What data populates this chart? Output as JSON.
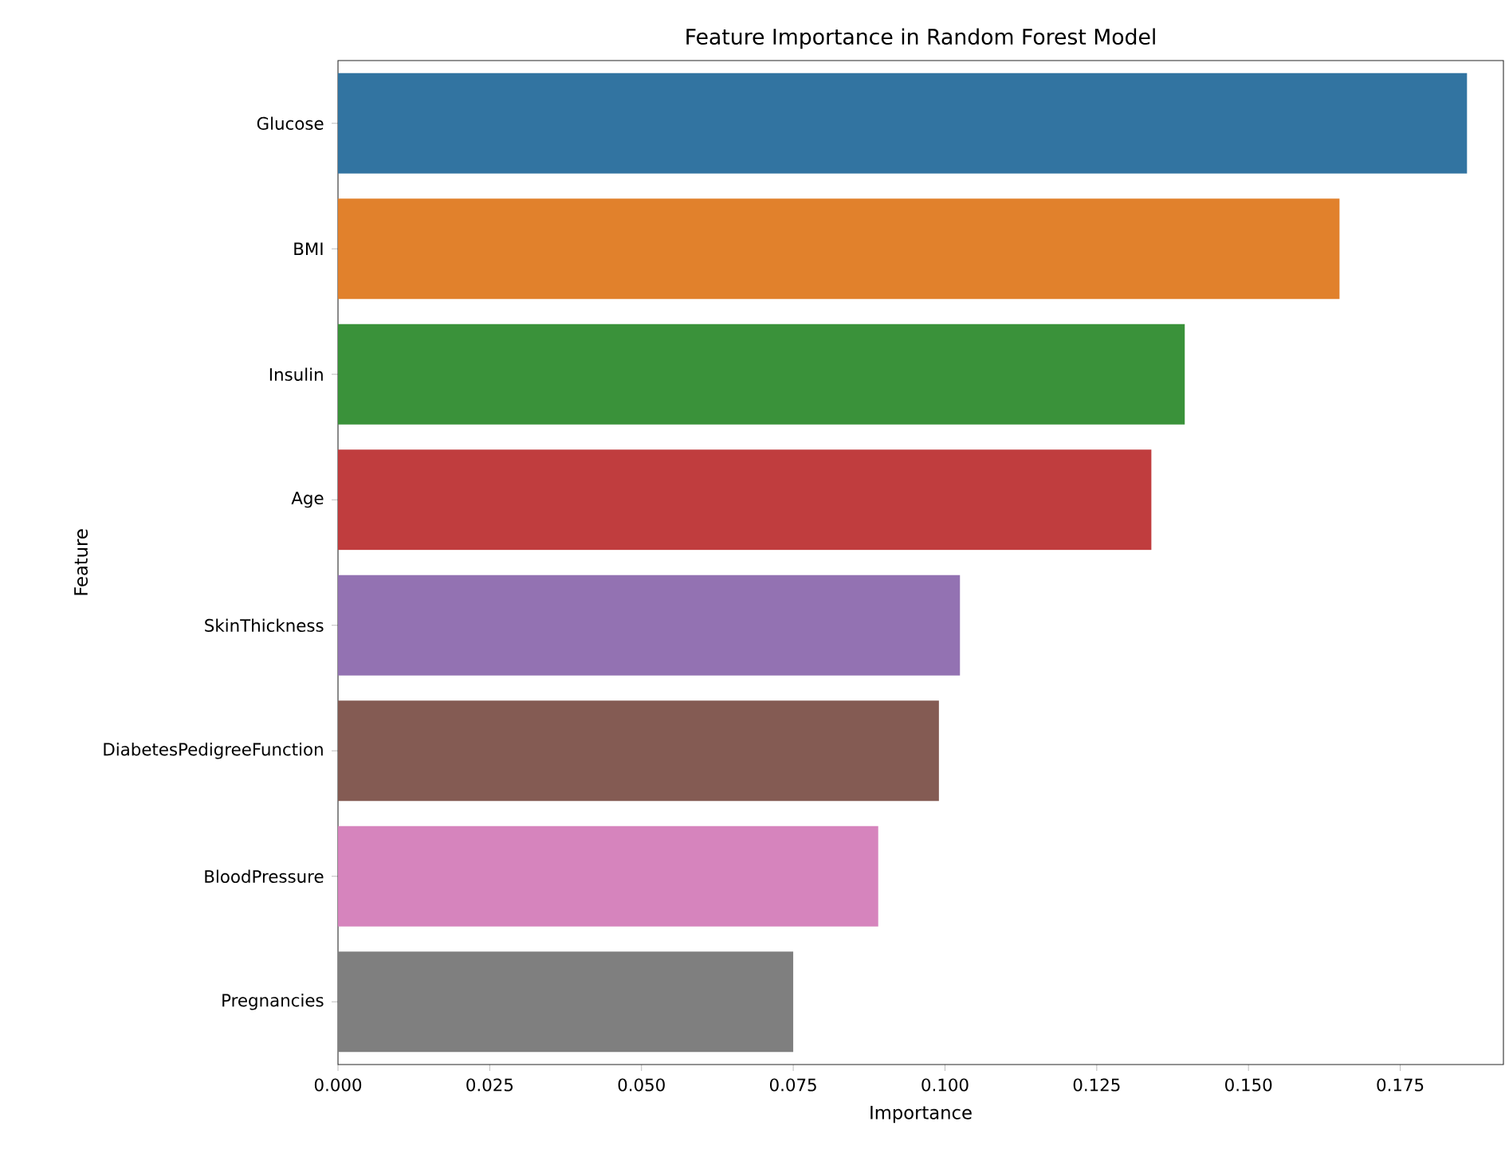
{
  "chart_data": {
    "type": "bar",
    "orientation": "horizontal",
    "title": "Feature Importance in Random Forest Model",
    "xlabel": "Importance",
    "ylabel": "Feature",
    "categories": [
      "Glucose",
      "BMI",
      "Insulin",
      "Age",
      "SkinThickness",
      "DiabetesPedigreeFunction",
      "BloodPressure",
      "Pregnancies"
    ],
    "values": [
      0.186,
      0.165,
      0.1395,
      0.134,
      0.1025,
      0.099,
      0.089,
      0.075
    ],
    "colors": [
      "#3274a1",
      "#e1812c",
      "#3a923a",
      "#c03d3e",
      "#9372b2",
      "#845b53",
      "#d684bd",
      "#7f7f7f"
    ],
    "xlim": [
      0,
      0.192
    ],
    "xticks": [
      {
        "value": 0,
        "label": "0.000"
      },
      {
        "value": 0.025,
        "label": "0.025"
      },
      {
        "value": 0.05,
        "label": "0.050"
      },
      {
        "value": 0.075,
        "label": "0.075"
      },
      {
        "value": 0.1,
        "label": "0.100"
      },
      {
        "value": 0.125,
        "label": "0.125"
      },
      {
        "value": 0.15,
        "label": "0.150"
      },
      {
        "value": 0.175,
        "label": "0.175"
      }
    ]
  }
}
